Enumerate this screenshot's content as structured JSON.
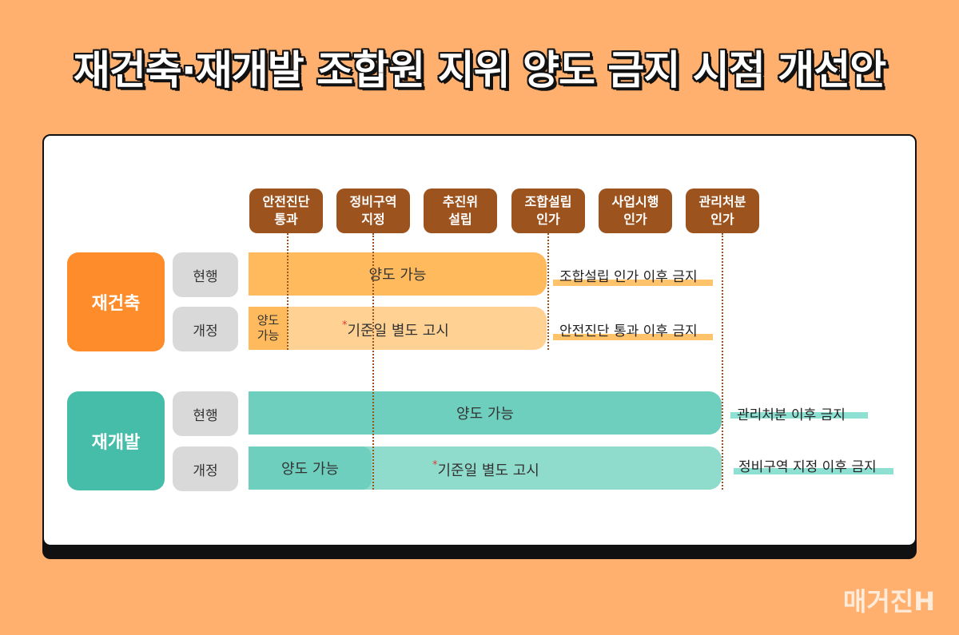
{
  "title": "재건축·재개발 조합원 지위 양도 금지 시점 개선안",
  "stages": [
    "안전진단\n통과",
    "정비구역\n지정",
    "추진위\n설립",
    "조합설립\n인가",
    "사업시행\n인가",
    "관리처분\n인가"
  ],
  "rebuild": {
    "label": "재건축",
    "current": {
      "row_label": "현행",
      "bar_text": "양도 가능",
      "note": "조합설립 인가 이후 금지"
    },
    "revised": {
      "row_label": "개정",
      "small_text": "양도\n가능",
      "star": "*",
      "bar_text": "기준일 별도 고시",
      "note": "안전진단 통과 이후 금지"
    }
  },
  "redevelop": {
    "label": "재개발",
    "current": {
      "row_label": "현행",
      "bar_text": "양도 가능",
      "note": "관리처분 이후 금지"
    },
    "revised": {
      "row_label": "개정",
      "small_text": "양도 가능",
      "star": "*",
      "bar_text": "기준일 별도 고시",
      "note": "정비구역 지정 이후 금지"
    }
  },
  "watermark": "매거진H",
  "colors": {
    "background": "#FFB06E",
    "stage": "#9C531E",
    "rebuild_category": "#FF8C2A",
    "rebuild_current": "#FFBA5E",
    "rebuild_revised_light": "#FFD294",
    "rebuild_revised_dark": "#FFBA5E",
    "rebuild_highlight": "#FFC36B",
    "redevelop_category": "#45BDA8",
    "redevelop_current": "#6FCFBE",
    "redevelop_revised_light": "#8FDCCC",
    "redevelop_revised_dark": "#6FCFBE",
    "redevelop_highlight": "#8EE0D2"
  }
}
